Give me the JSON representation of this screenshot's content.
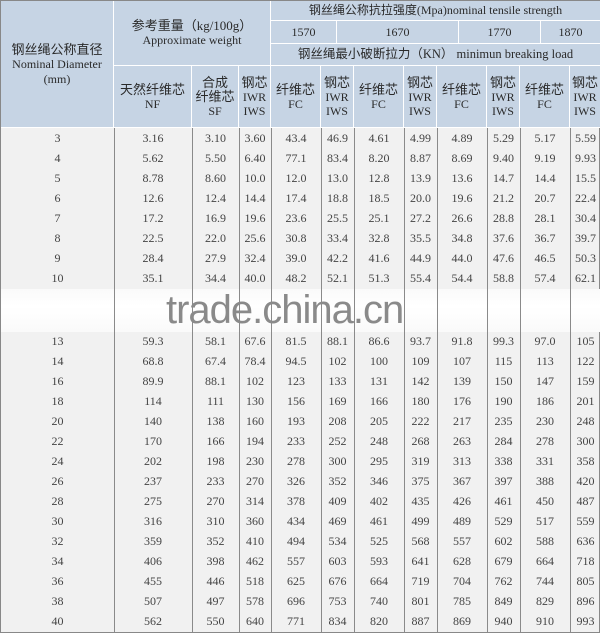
{
  "header": {
    "diameter": {
      "cn": "钢丝绳公称直径",
      "en": "Nominal Diameter",
      "unit": "(mm)"
    },
    "weight": {
      "cn": "参考重量（kg/100g）",
      "en": "Approximate weight"
    },
    "tensile": "钢丝绳公称抗拉强度(Mpa)nominal tensile strength",
    "grades": [
      "1570",
      "1670",
      "1770",
      "1870"
    ],
    "breaking": "钢丝绳最小破断拉力（KN） minimun breaking load",
    "subheads": [
      {
        "cn": "天然纤维芯",
        "en": "NF"
      },
      {
        "cn": "合成\n纤维芯",
        "en": "SF"
      },
      {
        "cn": "钢芯",
        "en": "IWR\nIWS"
      },
      {
        "cn": "纤维芯",
        "en": "FC"
      },
      {
        "cn": "钢芯",
        "en": "IWR\nIWS"
      },
      {
        "cn": "纤维芯",
        "en": "FC"
      },
      {
        "cn": "钢芯",
        "en": "IWR\nIWS"
      },
      {
        "cn": "纤维芯",
        "en": "FC"
      },
      {
        "cn": "钢芯",
        "en": "IWR\nIWS"
      },
      {
        "cn": "纤维芯",
        "en": "FC"
      },
      {
        "cn": "钢芯",
        "en": "IWR\nIWS"
      }
    ]
  },
  "rows": [
    [
      "3",
      "3.16",
      "3.10",
      "3.60",
      "43.4",
      "46.9",
      "4.61",
      "4.99",
      "4.89",
      "5.29",
      "5.17",
      "5.59"
    ],
    [
      "4",
      "5.62",
      "5.50",
      "6.40",
      "77.1",
      "83.4",
      "8.20",
      "8.87",
      "8.69",
      "9.40",
      "9.19",
      "9.93"
    ],
    [
      "5",
      "8.78",
      "8.60",
      "10.0",
      "12.0",
      "13.0",
      "12.8",
      "13.9",
      "13.6",
      "14.7",
      "14.4",
      "15.5"
    ],
    [
      "6",
      "12.6",
      "12.4",
      "14.4",
      "17.4",
      "18.8",
      "18.5",
      "20.0",
      "19.6",
      "21.2",
      "20.7",
      "22.4"
    ],
    [
      "7",
      "17.2",
      "16.9",
      "19.6",
      "23.6",
      "25.5",
      "25.1",
      "27.2",
      "26.6",
      "28.8",
      "28.1",
      "30.4"
    ],
    [
      "8",
      "22.5",
      "22.0",
      "25.6",
      "30.8",
      "33.4",
      "32.8",
      "35.5",
      "34.8",
      "37.6",
      "36.7",
      "39.7"
    ],
    [
      "9",
      "28.4",
      "27.9",
      "32.4",
      "39.0",
      "42.2",
      "41.6",
      "44.9",
      "44.0",
      "47.6",
      "46.5",
      "50.3"
    ],
    [
      "10",
      "35.1",
      "34.4",
      "40.0",
      "48.2",
      "52.1",
      "51.3",
      "55.4",
      "54.4",
      "58.8",
      "57.4",
      "62.1"
    ],
    [
      "",
      "",
      "",
      "",
      "",
      "",
      "",
      "",
      "",
      "",
      "",
      ""
    ],
    [
      "13",
      "59.3",
      "58.1",
      "67.6",
      "81.5",
      "88.1",
      "86.6",
      "93.7",
      "91.8",
      "99.3",
      "97.0",
      "105"
    ],
    [
      "14",
      "68.8",
      "67.4",
      "78.4",
      "94.5",
      "102",
      "100",
      "109",
      "107",
      "115",
      "113",
      "122"
    ],
    [
      "16",
      "89.9",
      "88.1",
      "102",
      "123",
      "133",
      "131",
      "142",
      "139",
      "150",
      "147",
      "159"
    ],
    [
      "18",
      "114",
      "111",
      "130",
      "156",
      "169",
      "166",
      "180",
      "176",
      "190",
      "186",
      "201"
    ],
    [
      "20",
      "140",
      "138",
      "160",
      "193",
      "208",
      "205",
      "222",
      "217",
      "235",
      "230",
      "248"
    ],
    [
      "22",
      "170",
      "166",
      "194",
      "233",
      "252",
      "248",
      "268",
      "263",
      "284",
      "278",
      "300"
    ],
    [
      "24",
      "202",
      "198",
      "230",
      "278",
      "300",
      "295",
      "319",
      "313",
      "338",
      "331",
      "358"
    ],
    [
      "26",
      "237",
      "233",
      "270",
      "326",
      "352",
      "346",
      "375",
      "367",
      "397",
      "388",
      "420"
    ],
    [
      "28",
      "275",
      "270",
      "314",
      "378",
      "409",
      "402",
      "435",
      "426",
      "461",
      "450",
      "487"
    ],
    [
      "30",
      "316",
      "310",
      "360",
      "434",
      "469",
      "461",
      "499",
      "489",
      "529",
      "517",
      "559"
    ],
    [
      "32",
      "359",
      "352",
      "410",
      "494",
      "534",
      "525",
      "568",
      "557",
      "602",
      "588",
      "636"
    ],
    [
      "34",
      "406",
      "398",
      "462",
      "557",
      "603",
      "593",
      "641",
      "628",
      "679",
      "664",
      "718"
    ],
    [
      "36",
      "455",
      "446",
      "518",
      "625",
      "676",
      "664",
      "719",
      "704",
      "762",
      "744",
      "805"
    ],
    [
      "38",
      "507",
      "497",
      "578",
      "696",
      "753",
      "740",
      "801",
      "785",
      "849",
      "829",
      "896"
    ],
    [
      "40",
      "562",
      "550",
      "640",
      "771",
      "834",
      "820",
      "887",
      "869",
      "940",
      "910",
      "993"
    ]
  ],
  "watermark": "trade.china.cn"
}
